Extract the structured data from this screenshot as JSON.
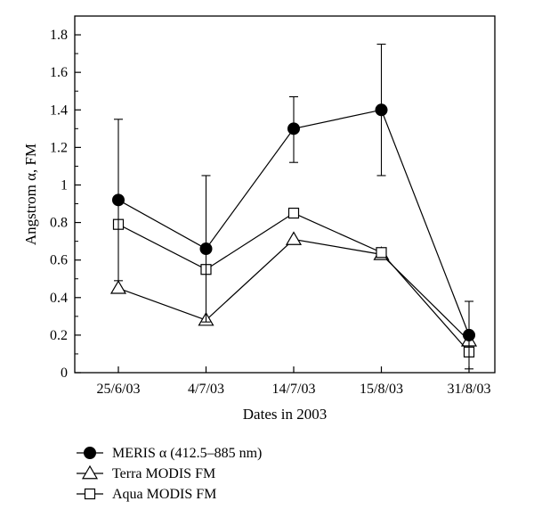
{
  "chart_data": {
    "type": "line",
    "title": "",
    "xlabel": "Dates in 2003",
    "ylabel": "Angstrom α, FM",
    "categories": [
      "25/6/03",
      "4/7/03",
      "14/7/03",
      "15/8/03",
      "31/8/03"
    ],
    "ylim": [
      0,
      1.9
    ],
    "yticks": [
      0,
      0.2,
      0.4,
      0.6,
      0.8,
      1,
      1.2,
      1.4,
      1.6,
      1.8
    ],
    "ytick_labels": [
      "0",
      "0.2",
      "0.4",
      "0.6",
      "0.8",
      "1",
      "1.2",
      "1.4",
      "1.6",
      "1.8"
    ],
    "grid": false,
    "legend_position": "bottom-left (below plot)",
    "series": [
      {
        "name": "MERIS α (412.5–885 nm)",
        "marker": "filled-circle",
        "values": [
          0.92,
          0.66,
          1.3,
          1.4,
          0.2
        ],
        "error_upper": [
          1.35,
          1.05,
          1.47,
          1.75,
          0.38
        ],
        "error_lower": [
          0.49,
          0.27,
          1.12,
          1.05,
          0.02
        ]
      },
      {
        "name": "Terra MODIS FM",
        "marker": "open-triangle",
        "values": [
          0.45,
          0.28,
          0.71,
          0.63,
          0.17
        ]
      },
      {
        "name": "Aqua MODIS FM",
        "marker": "open-square",
        "values": [
          0.79,
          0.55,
          0.85,
          0.64,
          0.11
        ]
      }
    ]
  }
}
